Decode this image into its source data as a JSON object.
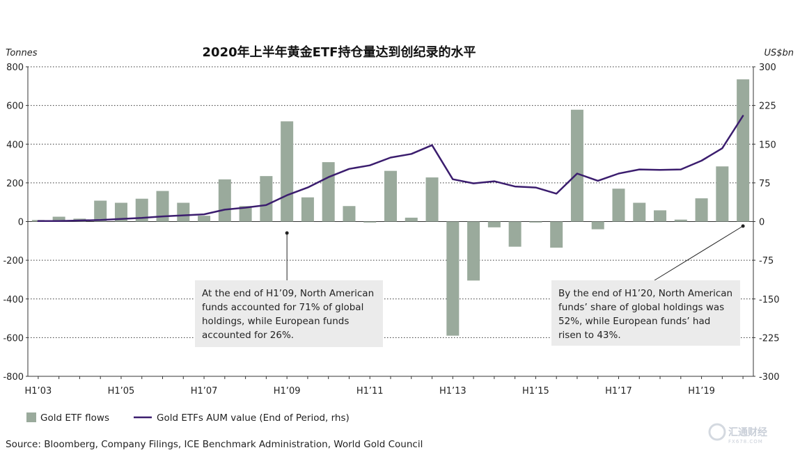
{
  "chart_data": {
    "type": "bar+line",
    "title": "2020年上半年黄金ETF持仓量达到创纪录的水平",
    "left_axis_label": "Tonnes",
    "right_axis_label": "US$bn",
    "left_ylim": [
      -800,
      800
    ],
    "right_ylim": [
      -300,
      300
    ],
    "left_ticks": [
      800,
      600,
      400,
      200,
      0,
      -200,
      -400,
      -600,
      -800
    ],
    "right_ticks": [
      300,
      225,
      150,
      75,
      0,
      -75,
      -150,
      -225,
      -300
    ],
    "left_tick_labels": [
      "800",
      "600",
      "400",
      "200",
      "0",
      "-200",
      "-400",
      "-600",
      "-800"
    ],
    "right_tick_labels": [
      "300",
      "225",
      "150",
      "75",
      "0",
      "-75",
      "-150",
      "-225",
      "-300"
    ],
    "periods": [
      "H1'03",
      "H2'03",
      "H1'04",
      "H2'04",
      "H1'05",
      "H2'05",
      "H1'06",
      "H2'06",
      "H1'07",
      "H2'07",
      "H1'08",
      "H2'08",
      "H1'09",
      "H2'09",
      "H1'10",
      "H2'10",
      "H1'11",
      "H2'11",
      "H1'12",
      "H2'12",
      "H1'13",
      "H2'13",
      "H1'14",
      "H2'14",
      "H1'15",
      "H2'15",
      "H1'16",
      "H2'16",
      "H1'17",
      "H2'17",
      "H1'18",
      "H2'18",
      "H1'19",
      "H2'19",
      "H1'20"
    ],
    "x_tick_labels": [
      "H1’03",
      "H1’05",
      "H1’07",
      "H1’09",
      "H1’11",
      "H1’13",
      "H1’15",
      "H1’17",
      "H1’19"
    ],
    "x_tick_period_index": [
      0,
      4,
      8,
      12,
      16,
      20,
      24,
      28,
      32
    ],
    "series": [
      {
        "name": "Gold ETF flows",
        "type": "bar",
        "axis": "left",
        "color": "#9aaa9c",
        "values": [
          8,
          25,
          15,
          108,
          97,
          118,
          158,
          97,
          30,
          218,
          80,
          235,
          518,
          125,
          307,
          80,
          -5,
          262,
          20,
          228,
          -590,
          -305,
          -30,
          -130,
          -5,
          -135,
          578,
          -40,
          170,
          97,
          58,
          10,
          120,
          285,
          735
        ]
      },
      {
        "name": "Gold ETFs AUM value (End of Period, rhs)",
        "type": "line",
        "axis": "right",
        "color": "#3b1d6e",
        "values": [
          1,
          1,
          2,
          3,
          5,
          7,
          10,
          12,
          14,
          23,
          27,
          32,
          51,
          66,
          86,
          102,
          109,
          124,
          131,
          148,
          82,
          74,
          78,
          68,
          66,
          54,
          93,
          79,
          93,
          101,
          100,
          101,
          118,
          142,
          205
        ]
      }
    ],
    "annotations": [
      {
        "period_index": 12,
        "lines": [
          "At the end of H1’09, North American",
          "funds accounted for 71% of global",
          "holdings, while European funds",
          "accounted for 26%."
        ]
      },
      {
        "period_index": 34,
        "lines": [
          "By the end of H1’20, North American",
          "funds’ share of global holdings was",
          "52%, while European funds’ had",
          "risen to 43%."
        ]
      }
    ],
    "legend": [
      "Gold ETF flows",
      "Gold ETFs AUM value (End of Period, rhs)"
    ],
    "grid": true
  },
  "source": "Source: Bloomberg, Company Filings, ICE Benchmark Administration, World Gold Council",
  "watermark": {
    "brand": "汇通财经",
    "domain": "FX678.COM"
  }
}
